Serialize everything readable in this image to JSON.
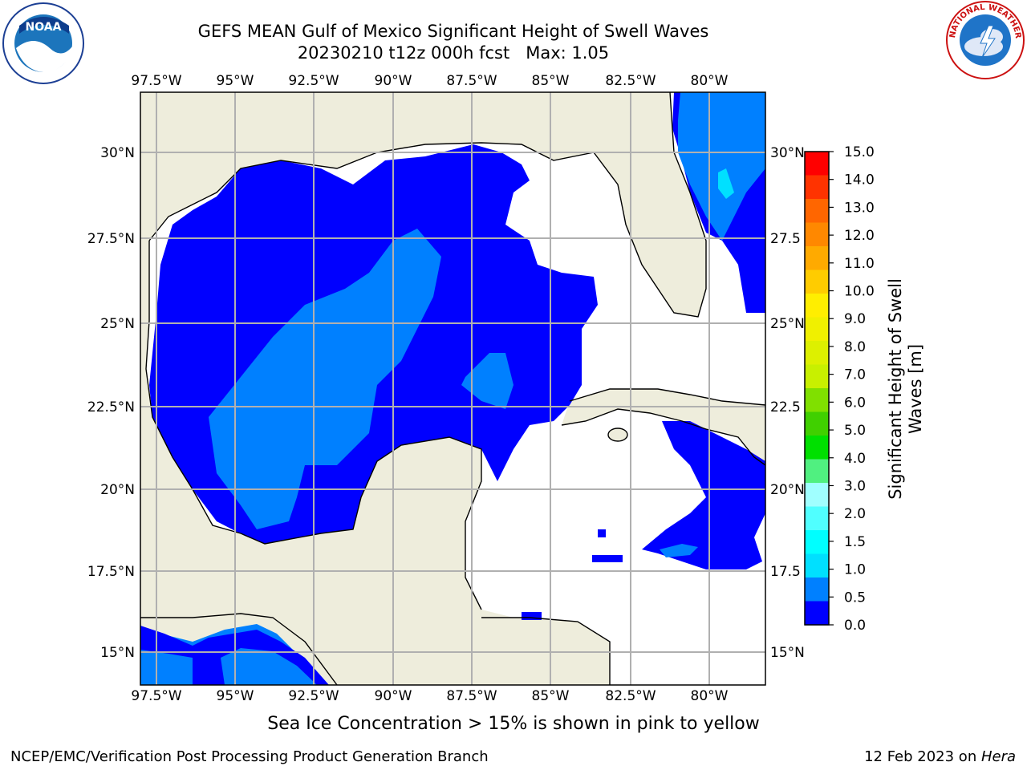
{
  "header": {
    "title_line1": "GEFS MEAN Gulf of Mexico Significant Height of Swell Waves",
    "title_line2": "20230210 t12z 000h fcst   Max: 1.05"
  },
  "logos": {
    "left": {
      "icon": "noaa-logo",
      "text": "NOAA"
    },
    "right": {
      "icon": "nws-logo",
      "text": "NATIONAL WEATHER SERVICE"
    }
  },
  "map": {
    "lon_labels": [
      "97.5°W",
      "95°W",
      "92.5°W",
      "90°W",
      "87.5°W",
      "85°W",
      "82.5°W",
      "80°W"
    ],
    "lat_labels_left": [
      "30°N",
      "27.5°N",
      "25°N",
      "22.5°N",
      "20°N",
      "17.5°N",
      "15°N"
    ],
    "lat_labels_right": [
      "30°N",
      "27.5",
      "25°N",
      "22.5",
      "20°N",
      "17.5",
      "15°N"
    ],
    "colors": {
      "land": "#eeeddc",
      "water_low": "#0000ff",
      "water_mid": "#0080ff",
      "water_high": "#00e0ff",
      "grid": "#b0b0b0"
    }
  },
  "colorbar": {
    "label_line1": "Significant Height of Swell",
    "label_line2": "Waves [m]",
    "ticks": [
      "15.0",
      "14.0",
      "13.0",
      "12.0",
      "11.0",
      "10.0",
      "9.0",
      "8.0",
      "7.0",
      "6.0",
      "5.0",
      "4.0",
      "3.0",
      "2.0",
      "1.5",
      "1.0",
      "0.5",
      "0.0"
    ],
    "colors": [
      "#ff0000",
      "#ff3300",
      "#ff6600",
      "#ff8800",
      "#ffaa00",
      "#ffcc00",
      "#ffee00",
      "#f0f000",
      "#ddf000",
      "#c8f000",
      "#80e000",
      "#40d000",
      "#00e000",
      "#50f080",
      "#a0ffff",
      "#50ffff",
      "#00ffff",
      "#00e0ff",
      "#0080ff",
      "#0000ff"
    ]
  },
  "footer": {
    "caption": "Sea Ice Concentration > 15% is shown in pink to yellow",
    "credit": "NCEP/EMC/Verification Post Processing Product Generation Branch",
    "date_prefix": "12 Feb 2023 on ",
    "host": "Hera"
  }
}
